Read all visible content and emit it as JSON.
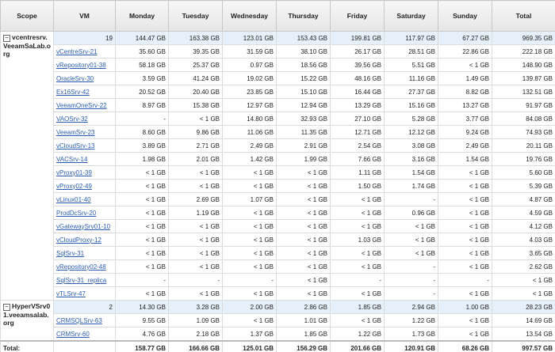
{
  "table": {
    "columns": [
      "Scope",
      "VM",
      "Monday",
      "Tuesday",
      "Wednesday",
      "Thursday",
      "Friday",
      "Saturday",
      "Sunday",
      "Total"
    ],
    "groups": [
      {
        "scope": "vcentresrv.VeeamSaLab.org",
        "summary": [
          "19",
          "144.47 GB",
          "163.38 GB",
          "123.01 GB",
          "153.43 GB",
          "199.81 GB",
          "117.97 GB",
          "67.27 GB",
          "969.35 GB"
        ],
        "rows": [
          {
            "vm": "vCentreSrv-21",
            "values": [
              "35.60 GB",
              "39.35 GB",
              "31.59 GB",
              "38.10 GB",
              "26.17 GB",
              "28.51 GB",
              "22.86 GB",
              "222.18 GB"
            ]
          },
          {
            "vm": "vRepository01-38",
            "values": [
              "58.18 GB",
              "25.37 GB",
              "0.97 GB",
              "18.56 GB",
              "39.56 GB",
              "5.51 GB",
              "< 1 GB",
              "148.90 GB"
            ]
          },
          {
            "vm": "OracleSrv-30",
            "values": [
              "3.59 GB",
              "41.24 GB",
              "19.02 GB",
              "15.22 GB",
              "48.16 GB",
              "11.16 GB",
              "1.49 GB",
              "139.87 GB"
            ]
          },
          {
            "vm": "Ex16Srv-42",
            "values": [
              "20.52 GB",
              "20.40 GB",
              "23.85 GB",
              "15.10 GB",
              "16.44 GB",
              "27.37 GB",
              "8.82 GB",
              "132.51 GB"
            ]
          },
          {
            "vm": "VeeamOneSrv-22",
            "values": [
              "8.97 GB",
              "15.38 GB",
              "12.97 GB",
              "12.94 GB",
              "13.29 GB",
              "15.16 GB",
              "13.27 GB",
              "91.97 GB"
            ]
          },
          {
            "vm": "VAOSrv-32",
            "values": [
              "-",
              "< 1 GB",
              "14.80 GB",
              "32.93 GB",
              "27.10 GB",
              "5.28 GB",
              "3.77 GB",
              "84.08 GB"
            ]
          },
          {
            "vm": "VeeamSrv-23",
            "values": [
              "8.60 GB",
              "9.86 GB",
              "11.06 GB",
              "11.35 GB",
              "12.71 GB",
              "12.12 GB",
              "9.24 GB",
              "74.93 GB"
            ]
          },
          {
            "vm": "vCloudSrv-13",
            "values": [
              "3.89 GB",
              "2.71 GB",
              "2.49 GB",
              "2.91 GB",
              "2.54 GB",
              "3.08 GB",
              "2.49 GB",
              "20.11 GB"
            ]
          },
          {
            "vm": "VACSrv-14",
            "values": [
              "1.98 GB",
              "2.01 GB",
              "1.42 GB",
              "1.99 GB",
              "7.66 GB",
              "3.16 GB",
              "1.54 GB",
              "19.76 GB"
            ]
          },
          {
            "vm": "vProxy01-39",
            "values": [
              "< 1 GB",
              "< 1 GB",
              "< 1 GB",
              "< 1 GB",
              "1.11 GB",
              "1.54 GB",
              "< 1 GB",
              "5.60 GB"
            ]
          },
          {
            "vm": "vProxy02-49",
            "values": [
              "< 1 GB",
              "< 1 GB",
              "< 1 GB",
              "< 1 GB",
              "1.50 GB",
              "1.74 GB",
              "< 1 GB",
              "5.39 GB"
            ]
          },
          {
            "vm": "vLinux01-40",
            "values": [
              "< 1 GB",
              "2.69 GB",
              "1.07 GB",
              "< 1 GB",
              "< 1 GB",
              "-",
              "< 1 GB",
              "4.87 GB"
            ]
          },
          {
            "vm": "ProdDcSrv-20",
            "values": [
              "< 1 GB",
              "1.19 GB",
              "< 1 GB",
              "< 1 GB",
              "< 1 GB",
              "0.96 GB",
              "< 1 GB",
              "4.59 GB"
            ]
          },
          {
            "vm": "vGatewaySrv01-10",
            "values": [
              "< 1 GB",
              "< 1 GB",
              "< 1 GB",
              "< 1 GB",
              "< 1 GB",
              "< 1 GB",
              "< 1 GB",
              "4.12 GB"
            ]
          },
          {
            "vm": "vCloudProxy-12",
            "values": [
              "< 1 GB",
              "< 1 GB",
              "< 1 GB",
              "< 1 GB",
              "1.03 GB",
              "< 1 GB",
              "< 1 GB",
              "4.03 GB"
            ]
          },
          {
            "vm": "SqlSrv-31",
            "values": [
              "< 1 GB",
              "< 1 GB",
              "< 1 GB",
              "< 1 GB",
              "< 1 GB",
              "< 1 GB",
              "< 1 GB",
              "3.65 GB"
            ]
          },
          {
            "vm": "vRepository02-48",
            "values": [
              "< 1 GB",
              "< 1 GB",
              "< 1 GB",
              "< 1 GB",
              "< 1 GB",
              "-",
              "< 1 GB",
              "2.62 GB"
            ]
          },
          {
            "vm": "SqlSrv-31_replica",
            "values": [
              "-",
              "-",
              "-",
              "< 1 GB",
              "-",
              "-",
              "-",
              "< 1 GB"
            ]
          },
          {
            "vm": "vTLSrv-47",
            "values": [
              "< 1 GB",
              "< 1 GB",
              "< 1 GB",
              "< 1 GB",
              "< 1 GB",
              "-",
              "< 1 GB",
              "< 1 GB"
            ]
          }
        ]
      },
      {
        "scope": "HyperVSrv01.veeamsalab.org",
        "summary": [
          "2",
          "14.30 GB",
          "3.28 GB",
          "2.00 GB",
          "2.86 GB",
          "1.85 GB",
          "2.94 GB",
          "1.00 GB",
          "28.23 GB"
        ],
        "rows": [
          {
            "vm": "CRMSQLSrv-63",
            "values": [
              "9.55 GB",
              "1.09 GB",
              "< 1 GB",
              "1.01 GB",
              "< 1 GB",
              "1.22 GB",
              "< 1 GB",
              "14.69 GB"
            ]
          },
          {
            "vm": "CRMSrv-60",
            "values": [
              "4.76 GB",
              "2.18 GB",
              "1.37 GB",
              "1.85 GB",
              "1.22 GB",
              "1.73 GB",
              "< 1 GB",
              "13.54 GB"
            ]
          }
        ]
      }
    ],
    "total": {
      "label": "Total:",
      "values": [
        "158.77 GB",
        "166.66 GB",
        "125.01 GB",
        "156.29 GB",
        "201.66 GB",
        "120.91 GB",
        "68.26 GB",
        "997.57 GB"
      ]
    }
  }
}
